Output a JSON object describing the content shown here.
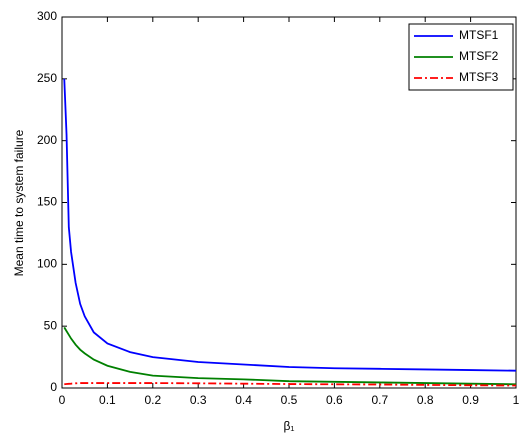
{
  "chart_data": {
    "type": "line",
    "xlabel": "β₁",
    "ylabel": "Mean time to system failure",
    "x": [
      0.005,
      0.01,
      0.015,
      0.02,
      0.03,
      0.04,
      0.05,
      0.07,
      0.1,
      0.15,
      0.2,
      0.3,
      0.4,
      0.5,
      0.6,
      0.7,
      0.8,
      0.9,
      1
    ],
    "series": [
      {
        "name": "MTSF1",
        "color": "#0000ff",
        "style": "solid",
        "values": [
          250,
          205,
          130,
          110,
          85,
          68,
          58,
          45,
          36,
          29,
          25,
          21,
          19,
          17,
          16,
          15.5,
          15,
          14.5,
          14
        ]
      },
      {
        "name": "MTSF2",
        "color": "#008000",
        "style": "solid",
        "values": [
          49,
          46,
          43,
          40,
          35,
          31,
          28,
          23,
          18,
          13,
          10,
          8,
          7,
          5.5,
          5,
          4.5,
          4,
          3.5,
          3
        ]
      },
      {
        "name": "MTSF3",
        "color": "#ff0000",
        "style": "dashdot",
        "values": [
          3,
          3.2,
          3.4,
          3.5,
          3.8,
          4,
          4,
          4,
          4,
          4,
          4,
          3.8,
          3.5,
          3.2,
          3,
          2.8,
          2.5,
          2.2,
          2
        ]
      }
    ],
    "xlim": [
      0,
      1
    ],
    "xticks": [
      0,
      0.1,
      0.2,
      0.3,
      0.4,
      0.5,
      0.6,
      0.7,
      0.8,
      0.9,
      1
    ],
    "ylim": [
      0,
      300
    ],
    "yticks": [
      0,
      50,
      100,
      150,
      200,
      250,
      300
    ],
    "legend": "upper right"
  }
}
